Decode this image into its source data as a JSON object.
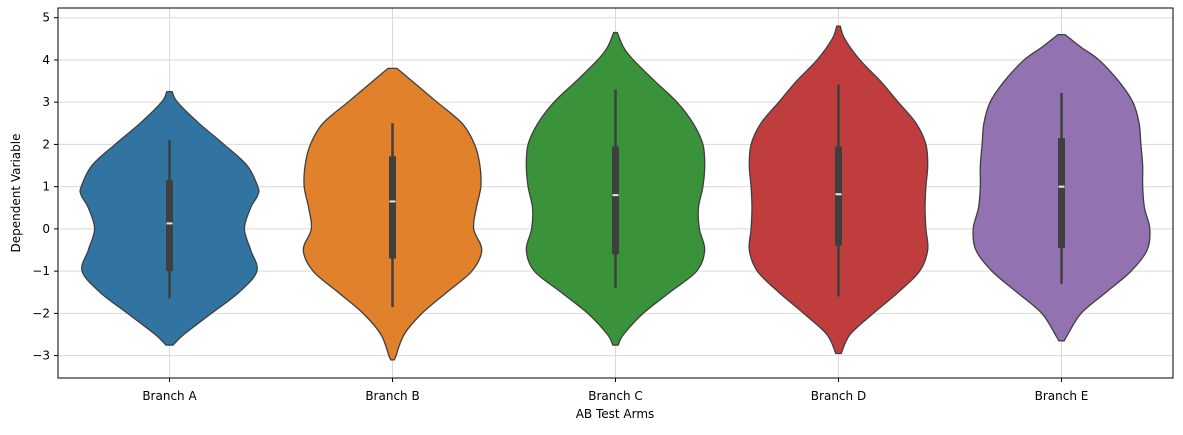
{
  "chart_data": {
    "type": "violin",
    "title": "",
    "xlabel": "AB Test Arms",
    "ylabel": "Dependent Variable",
    "ylim": [
      -3.53,
      5.23
    ],
    "yticks": [
      -3,
      -2,
      -1,
      0,
      1,
      2,
      3,
      4,
      5
    ],
    "grid": true,
    "categories": [
      "Branch A",
      "Branch B",
      "Branch C",
      "Branch D",
      "Branch E"
    ],
    "colors": [
      "#3274a1",
      "#e1812c",
      "#3a923a",
      "#c03d3e",
      "#9372b2"
    ],
    "violins": [
      {
        "name": "Branch A",
        "min": -2.75,
        "max": 3.25,
        "q1": -1.0,
        "median": 0.13,
        "q3": 1.15,
        "whisker_low": -1.65,
        "whisker_high": 2.1,
        "density": [
          [
            -2.75,
            0.04
          ],
          [
            -2.5,
            0.16
          ],
          [
            -2,
            0.47
          ],
          [
            -1.5,
            0.78
          ],
          [
            -1,
            0.98
          ],
          [
            -0.5,
            0.91
          ],
          [
            0,
            0.84
          ],
          [
            0.5,
            0.91
          ],
          [
            0.8,
            0.99
          ],
          [
            1,
            0.99
          ],
          [
            1.5,
            0.87
          ],
          [
            2,
            0.61
          ],
          [
            2.5,
            0.33
          ],
          [
            3,
            0.09
          ],
          [
            3.25,
            0.03
          ]
        ]
      },
      {
        "name": "Branch B",
        "min": -3.1,
        "max": 3.8,
        "q1": -0.7,
        "median": 0.65,
        "q3": 1.72,
        "whisker_low": -1.85,
        "whisker_high": 2.5,
        "density": [
          [
            -3.1,
            0.02
          ],
          [
            -3,
            0.04
          ],
          [
            -2.5,
            0.13
          ],
          [
            -2,
            0.33
          ],
          [
            -1.5,
            0.61
          ],
          [
            -1,
            0.89
          ],
          [
            -0.5,
            1.0
          ],
          [
            0,
            0.91
          ],
          [
            0.5,
            0.94
          ],
          [
            1,
            0.99
          ],
          [
            1.5,
            0.98
          ],
          [
            2,
            0.92
          ],
          [
            2.5,
            0.78
          ],
          [
            3,
            0.5
          ],
          [
            3.5,
            0.22
          ],
          [
            3.8,
            0.05
          ]
        ]
      },
      {
        "name": "Branch C",
        "min": -2.75,
        "max": 4.65,
        "q1": -0.6,
        "median": 0.8,
        "q3": 1.95,
        "whisker_low": -1.4,
        "whisker_high": 3.3,
        "density": [
          [
            -2.75,
            0.03
          ],
          [
            -2.5,
            0.09
          ],
          [
            -2,
            0.31
          ],
          [
            -1.5,
            0.61
          ],
          [
            -1,
            0.91
          ],
          [
            -0.5,
            1.0
          ],
          [
            0,
            0.94
          ],
          [
            0.5,
            0.93
          ],
          [
            1,
            0.98
          ],
          [
            1.5,
            1.0
          ],
          [
            2,
            0.98
          ],
          [
            2.5,
            0.87
          ],
          [
            3,
            0.69
          ],
          [
            3.5,
            0.44
          ],
          [
            4,
            0.2
          ],
          [
            4.3,
            0.09
          ],
          [
            4.65,
            0.02
          ]
        ]
      },
      {
        "name": "Branch D",
        "min": -2.95,
        "max": 4.8,
        "q1": -0.4,
        "median": 0.82,
        "q3": 1.95,
        "whisker_low": -1.6,
        "whisker_high": 3.42,
        "density": [
          [
            -2.95,
            0.03
          ],
          [
            -2.5,
            0.13
          ],
          [
            -2,
            0.39
          ],
          [
            -1.5,
            0.67
          ],
          [
            -1,
            0.91
          ],
          [
            -0.5,
            1.0
          ],
          [
            0,
            0.98
          ],
          [
            0.5,
            0.97
          ],
          [
            1,
            0.98
          ],
          [
            1.5,
            1.0
          ],
          [
            2,
            0.98
          ],
          [
            2.5,
            0.87
          ],
          [
            3,
            0.67
          ],
          [
            3.5,
            0.47
          ],
          [
            4,
            0.24
          ],
          [
            4.5,
            0.07
          ],
          [
            4.8,
            0.02
          ]
        ]
      },
      {
        "name": "Branch E",
        "min": -2.65,
        "max": 4.6,
        "q1": -0.45,
        "median": 1.0,
        "q3": 2.15,
        "whisker_low": -1.3,
        "whisker_high": 3.22,
        "density": [
          [
            -2.65,
            0.03
          ],
          [
            -2.5,
            0.07
          ],
          [
            -2,
            0.22
          ],
          [
            -1.5,
            0.5
          ],
          [
            -1,
            0.78
          ],
          [
            -0.5,
            0.96
          ],
          [
            0,
            0.99
          ],
          [
            0.5,
            0.93
          ],
          [
            1,
            0.91
          ],
          [
            1.5,
            0.91
          ],
          [
            2,
            0.89
          ],
          [
            2.5,
            0.87
          ],
          [
            3,
            0.8
          ],
          [
            3.5,
            0.64
          ],
          [
            4,
            0.42
          ],
          [
            4.3,
            0.22
          ],
          [
            4.6,
            0.04
          ]
        ]
      }
    ]
  }
}
